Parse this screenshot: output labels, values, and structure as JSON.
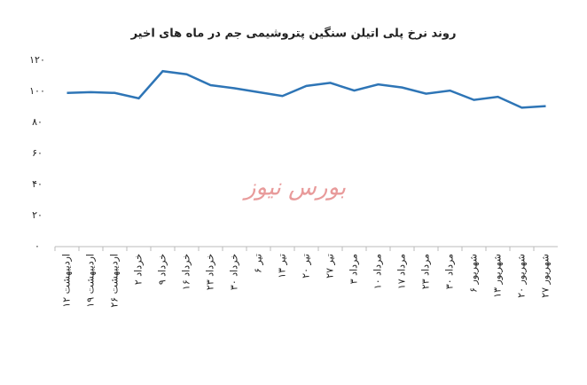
{
  "chart_data": {
    "type": "line",
    "title": "روند نرخ پلی اتیلن سنگین پتروشیمی جم در ماه های اخیر",
    "watermark": "بورس نیوز",
    "categories": [
      "۱۲ اردیبهشت",
      "۱۹ اردیبهشت",
      "۲۶ اردیبهشت",
      "۲ خرداد",
      "۹ خرداد",
      "۱۶ خرداد",
      "۲۳ خرداد",
      "۳۰ خرداد",
      "۶ تیر",
      "۱۳ تیر",
      "۲۰ تیر",
      "۲۷ تیر",
      "۳ مرداد",
      "۱۰ مرداد",
      "۱۷ مرداد",
      "۲۳ مرداد",
      "۳۰ مرداد",
      "۶ شهریور",
      "۱۳ شهریور",
      "۲۰ شهریور",
      "۲۷ شهریور"
    ],
    "values": [
      99,
      99.5,
      99,
      95.5,
      113,
      111,
      104,
      102,
      99.5,
      97,
      103.5,
      105.5,
      100.5,
      104.5,
      102.5,
      98.5,
      100.5,
      94.5,
      96.5,
      89.5,
      90.5
    ],
    "color": "#2e75b6",
    "ylim": [
      0,
      120
    ],
    "yticks": [
      {
        "value": 0,
        "label": "۰"
      },
      {
        "value": 20,
        "label": "۲۰"
      },
      {
        "value": 40,
        "label": "۴۰"
      },
      {
        "value": 60,
        "label": "۶۰"
      },
      {
        "value": 80,
        "label": "۸۰"
      },
      {
        "value": 100,
        "label": "۱۰۰"
      },
      {
        "value": 120,
        "label": "۱۲۰"
      }
    ]
  }
}
